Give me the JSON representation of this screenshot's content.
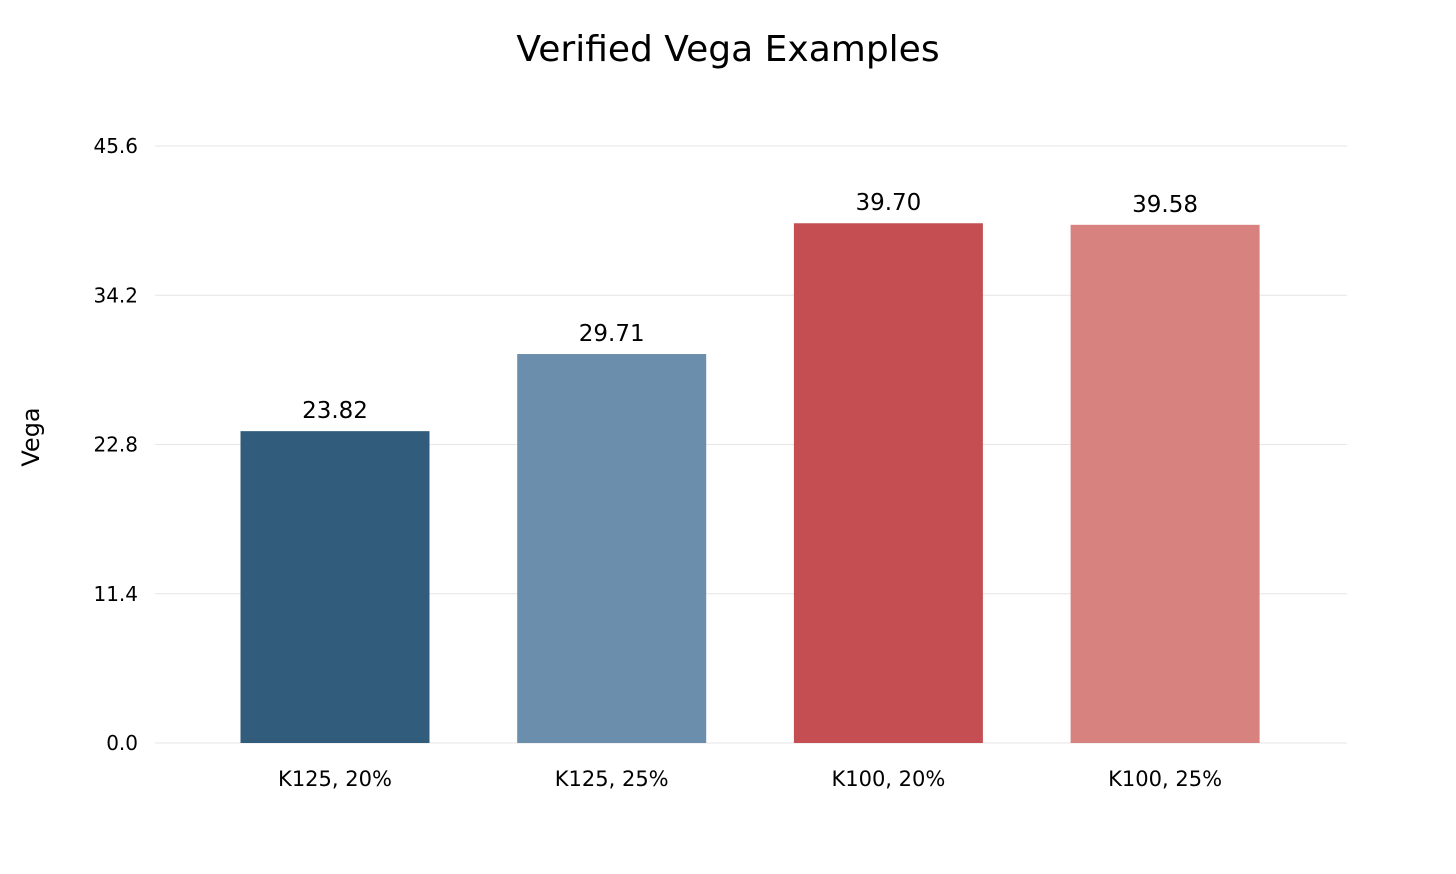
{
  "chart_data": {
    "type": "bar",
    "title": "Verified Vega Examples",
    "xlabel": "",
    "ylabel": "Vega",
    "ylim": [
      0,
      45.6
    ],
    "yticks": [
      "0.0",
      "11.4",
      "22.8",
      "34.2",
      "45.6"
    ],
    "categories": [
      "K125, 20%",
      "K125, 25%",
      "K100, 20%",
      "K100, 25%"
    ],
    "values": [
      23.82,
      29.71,
      39.7,
      39.58
    ],
    "value_labels": [
      "23.82",
      "29.71",
      "39.70",
      "39.58"
    ],
    "colors": [
      "#315c7c",
      "#6b8eac",
      "#c44e52",
      "#d88280"
    ],
    "grid": true,
    "legend": "none"
  }
}
